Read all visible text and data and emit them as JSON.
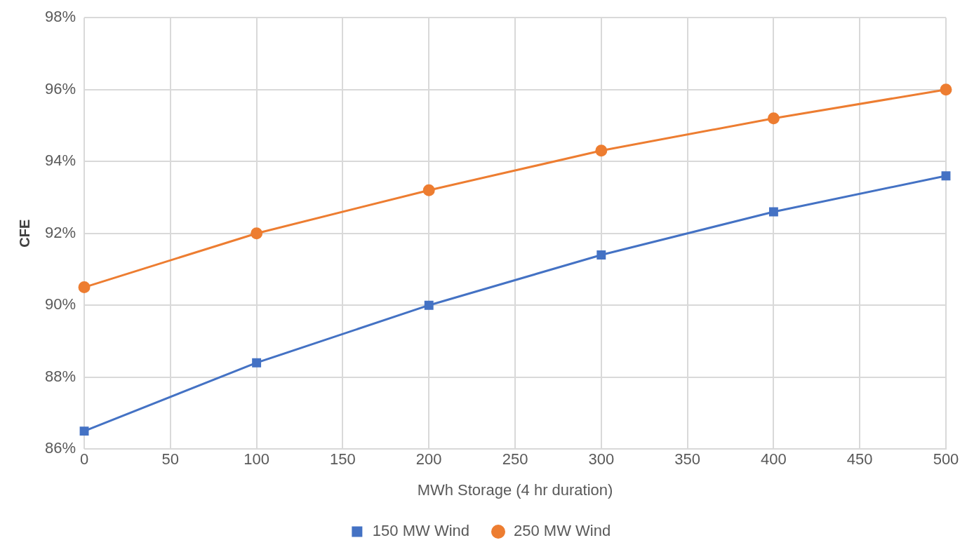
{
  "chart_data": {
    "type": "line",
    "xlabel": "MWh Storage (4 hr duration)",
    "ylabel": "CFE",
    "x": [
      0,
      100,
      200,
      300,
      400,
      500
    ],
    "series": [
      {
        "name": "150 MW Wind",
        "color": "#4472c4",
        "marker": "square",
        "values": [
          86.5,
          88.4,
          90.0,
          91.4,
          92.6,
          93.6
        ]
      },
      {
        "name": "250 MW Wind",
        "color": "#ed7d31",
        "marker": "circle",
        "values": [
          90.5,
          92.0,
          93.2,
          94.3,
          95.2,
          96.0
        ]
      }
    ],
    "xlim": [
      0,
      500
    ],
    "xticks": [
      0,
      50,
      100,
      150,
      200,
      250,
      300,
      350,
      400,
      450,
      500
    ],
    "ylim": [
      86,
      98
    ],
    "yticks": [
      {
        "value": 86,
        "label": "86%"
      },
      {
        "value": 88,
        "label": "88%"
      },
      {
        "value": 90,
        "label": "90%"
      },
      {
        "value": 92,
        "label": "92%"
      },
      {
        "value": 94,
        "label": "94%"
      },
      {
        "value": 96,
        "label": "96%"
      },
      {
        "value": 98,
        "label": "98%"
      }
    ],
    "grid": true,
    "legend": "bottom",
    "line_style": "solid"
  }
}
